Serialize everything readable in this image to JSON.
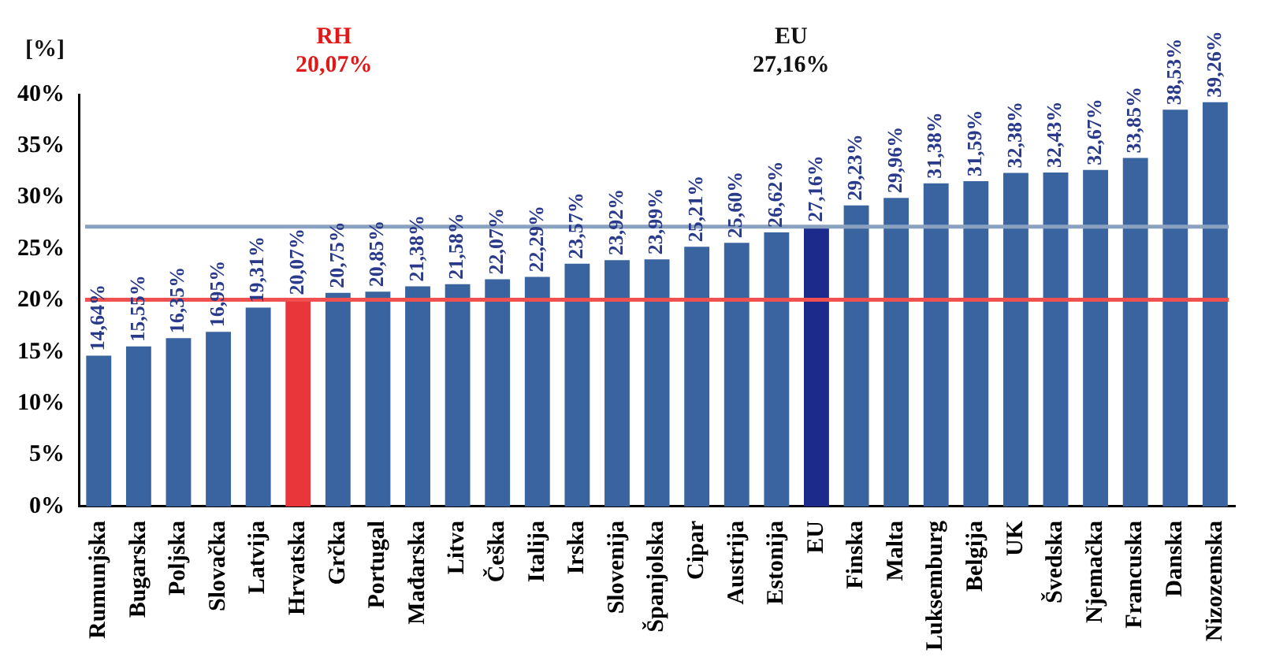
{
  "chart_data": {
    "type": "bar",
    "ylabel": "[%]",
    "categories": [
      "Rumunjska",
      "Bugarska",
      "Poljska",
      "Slovačka",
      "Latvija",
      "Hrvatska",
      "Grčka",
      "Portugal",
      "Mađarska",
      "Litva",
      "Češka",
      "Italija",
      "Irska",
      "Slovenija",
      "Španjolska",
      "Cipar",
      "Austrija",
      "Estonija",
      "EU",
      "Finska",
      "Malta",
      "Luksemburg",
      "Belgija",
      "UK",
      "Švedska",
      "Njemačka",
      "Francuska",
      "Danska",
      "Nizozemska"
    ],
    "values": [
      14.64,
      15.55,
      16.35,
      16.95,
      19.31,
      20.07,
      20.75,
      20.85,
      21.38,
      21.58,
      22.07,
      22.29,
      23.57,
      23.92,
      23.99,
      25.21,
      25.6,
      26.62,
      27.16,
      29.23,
      29.96,
      31.38,
      31.59,
      32.38,
      32.43,
      32.67,
      33.85,
      38.53,
      39.26
    ],
    "colors": [
      "#3a64a0",
      "#3a64a0",
      "#3a64a0",
      "#3a64a0",
      "#3a64a0",
      "#e8363a",
      "#3a64a0",
      "#3a64a0",
      "#3a64a0",
      "#3a64a0",
      "#3a64a0",
      "#3a64a0",
      "#3a64a0",
      "#3a64a0",
      "#3a64a0",
      "#3a64a0",
      "#3a64a0",
      "#3a64a0",
      "#1c2a8c",
      "#3a64a0",
      "#3a64a0",
      "#3a64a0",
      "#3a64a0",
      "#3a64a0",
      "#3a64a0",
      "#3a64a0",
      "#3a64a0",
      "#3a64a0",
      "#3a64a0"
    ],
    "value_labels": [
      "14,64%",
      "15,55%",
      "16,35%",
      "16,95%",
      "19,31%",
      "20,07%",
      "20,75%",
      "20,85%",
      "21,38%",
      "21,58%",
      "22,07%",
      "22,29%",
      "23,57%",
      "23,92%",
      "23,99%",
      "25,21%",
      "25,60%",
      "26,62%",
      "27,16%",
      "29,23%",
      "29,96%",
      "31,38%",
      "31,59%",
      "32,38%",
      "32,43%",
      "32,67%",
      "33,85%",
      "38,53%",
      "39,26%"
    ],
    "ylim": [
      0,
      40
    ],
    "yticks": [
      {
        "value": 0,
        "label": "0%"
      },
      {
        "value": 5,
        "label": "5%"
      },
      {
        "value": 10,
        "label": "10%"
      },
      {
        "value": 15,
        "label": "15%"
      },
      {
        "value": 20,
        "label": "20%"
      },
      {
        "value": 25,
        "label": "25%"
      },
      {
        "value": 30,
        "label": "30%"
      },
      {
        "value": 35,
        "label": "35%"
      },
      {
        "value": 40,
        "label": "40%"
      }
    ],
    "ref_lines": [
      {
        "axis": "y",
        "value": 27.16,
        "color": "#8aa2c0"
      },
      {
        "axis": "y",
        "value": 20.07,
        "color": "#f05050"
      }
    ],
    "annotations": [
      "RH 20,07%",
      "EU 27,16%"
    ],
    "grid": false,
    "legend": false
  }
}
